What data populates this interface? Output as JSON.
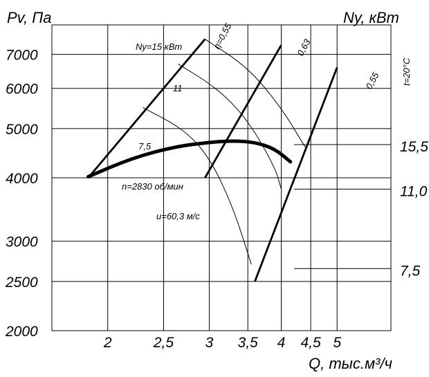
{
  "chart_data": {
    "type": "line",
    "title": "",
    "ylabel_left": "Pv, Па",
    "ylabel_right": "Ny, кВт",
    "xlabel": "Q, тыс.м³/ч",
    "temperature_label": "t=20°C",
    "x_ticks": [
      "2",
      "2,5",
      "3",
      "3,5",
      "4",
      "4,5",
      "5"
    ],
    "x_tick_values": [
      2,
      2.5,
      3,
      3.5,
      4,
      4.5,
      5
    ],
    "y_ticks_left": [
      "2000",
      "2500",
      "3000",
      "4000",
      "5000",
      "6000",
      "7000"
    ],
    "y_tick_values_left": [
      2000,
      2500,
      3000,
      4000,
      5000,
      6000,
      7000
    ],
    "y_ticks_right": [
      "7,5",
      "11,0",
      "15,5"
    ],
    "y_scale": "log",
    "x_scale": "log",
    "grid": true,
    "main_curve": {
      "label_speed": "n=2830 об/мин",
      "label_tip": "u=60,3 м/с",
      "points": [
        {
          "x": 1.85,
          "y": 4020
        },
        {
          "x": 2.2,
          "y": 4370
        },
        {
          "x": 2.6,
          "y": 4600
        },
        {
          "x": 3.0,
          "y": 4700
        },
        {
          "x": 3.3,
          "y": 4730
        },
        {
          "x": 3.6,
          "y": 4700
        },
        {
          "x": 3.9,
          "y": 4560
        },
        {
          "x": 4.15,
          "y": 4300
        }
      ]
    },
    "efficiency_lines": [
      {
        "label": "η=0,55",
        "x": [
          1.85,
          2.95
        ],
        "y": [
          4000,
          7500
        ]
      },
      {
        "label": "0,63",
        "x": [
          2.95,
          4.0
        ],
        "y": [
          4000,
          7300
        ]
      },
      {
        "label": "0,55",
        "x": [
          3.6,
          5.0
        ],
        "y": [
          2500,
          6600
        ]
      }
    ],
    "power_curves": [
      {
        "label": "Ny=15 кВт",
        "x": [
          2.95,
          3.5,
          4.0,
          4.4
        ],
        "y": [
          7500,
          6600,
          5500,
          4600
        ]
      },
      {
        "label": "11",
        "x": [
          2.65,
          3.1,
          3.5,
          3.9,
          4.0
        ],
        "y": [
          6700,
          6000,
          5200,
          4200,
          3800
        ]
      },
      {
        "label": "7,5",
        "x": [
          2.3,
          2.7,
          3.0,
          3.3,
          3.55
        ],
        "y": [
          5500,
          5000,
          4400,
          3500,
          2700
        ]
      }
    ],
    "right_scale_leaders": [
      {
        "label": "15,5",
        "y": 4650
      },
      {
        "label": "11,0",
        "y": 3800
      },
      {
        "label": "7,5",
        "y": 2650
      }
    ]
  }
}
